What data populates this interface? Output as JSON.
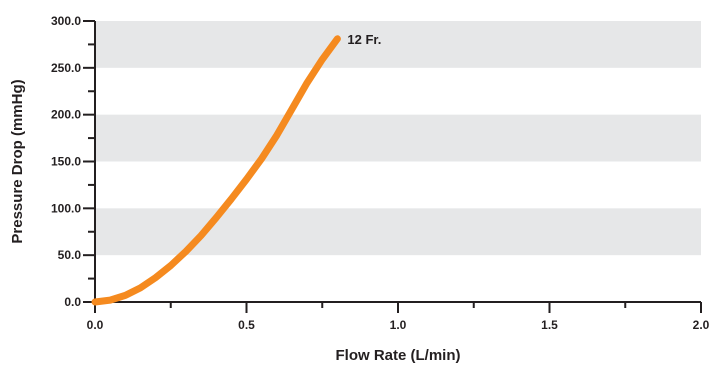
{
  "chart_data": {
    "type": "line",
    "xlabel": "Flow Rate (L/min)",
    "ylabel": "Pressure Drop (mmHg)",
    "xlim": [
      0,
      2.0
    ],
    "ylim": [
      0,
      300
    ],
    "x_ticks": [
      "0.0",
      "0.5",
      "1.0",
      "1.5",
      "2.0"
    ],
    "y_ticks": [
      "0.0",
      "50.0",
      "100.0",
      "150.0",
      "200.0",
      "250.0",
      "300.0"
    ],
    "grid": "alternating horizontal bands",
    "legend": "none",
    "series": [
      {
        "name": "12 Fr.",
        "color": "#f58a1f",
        "x": [
          0.0,
          0.05,
          0.1,
          0.15,
          0.2,
          0.25,
          0.3,
          0.35,
          0.4,
          0.45,
          0.5,
          0.55,
          0.6,
          0.65,
          0.7,
          0.75,
          0.8
        ],
        "y": [
          0,
          2,
          7,
          15,
          26,
          39,
          54,
          71,
          90,
          110,
          131,
          153,
          178,
          206,
          234,
          259,
          281
        ]
      }
    ]
  }
}
